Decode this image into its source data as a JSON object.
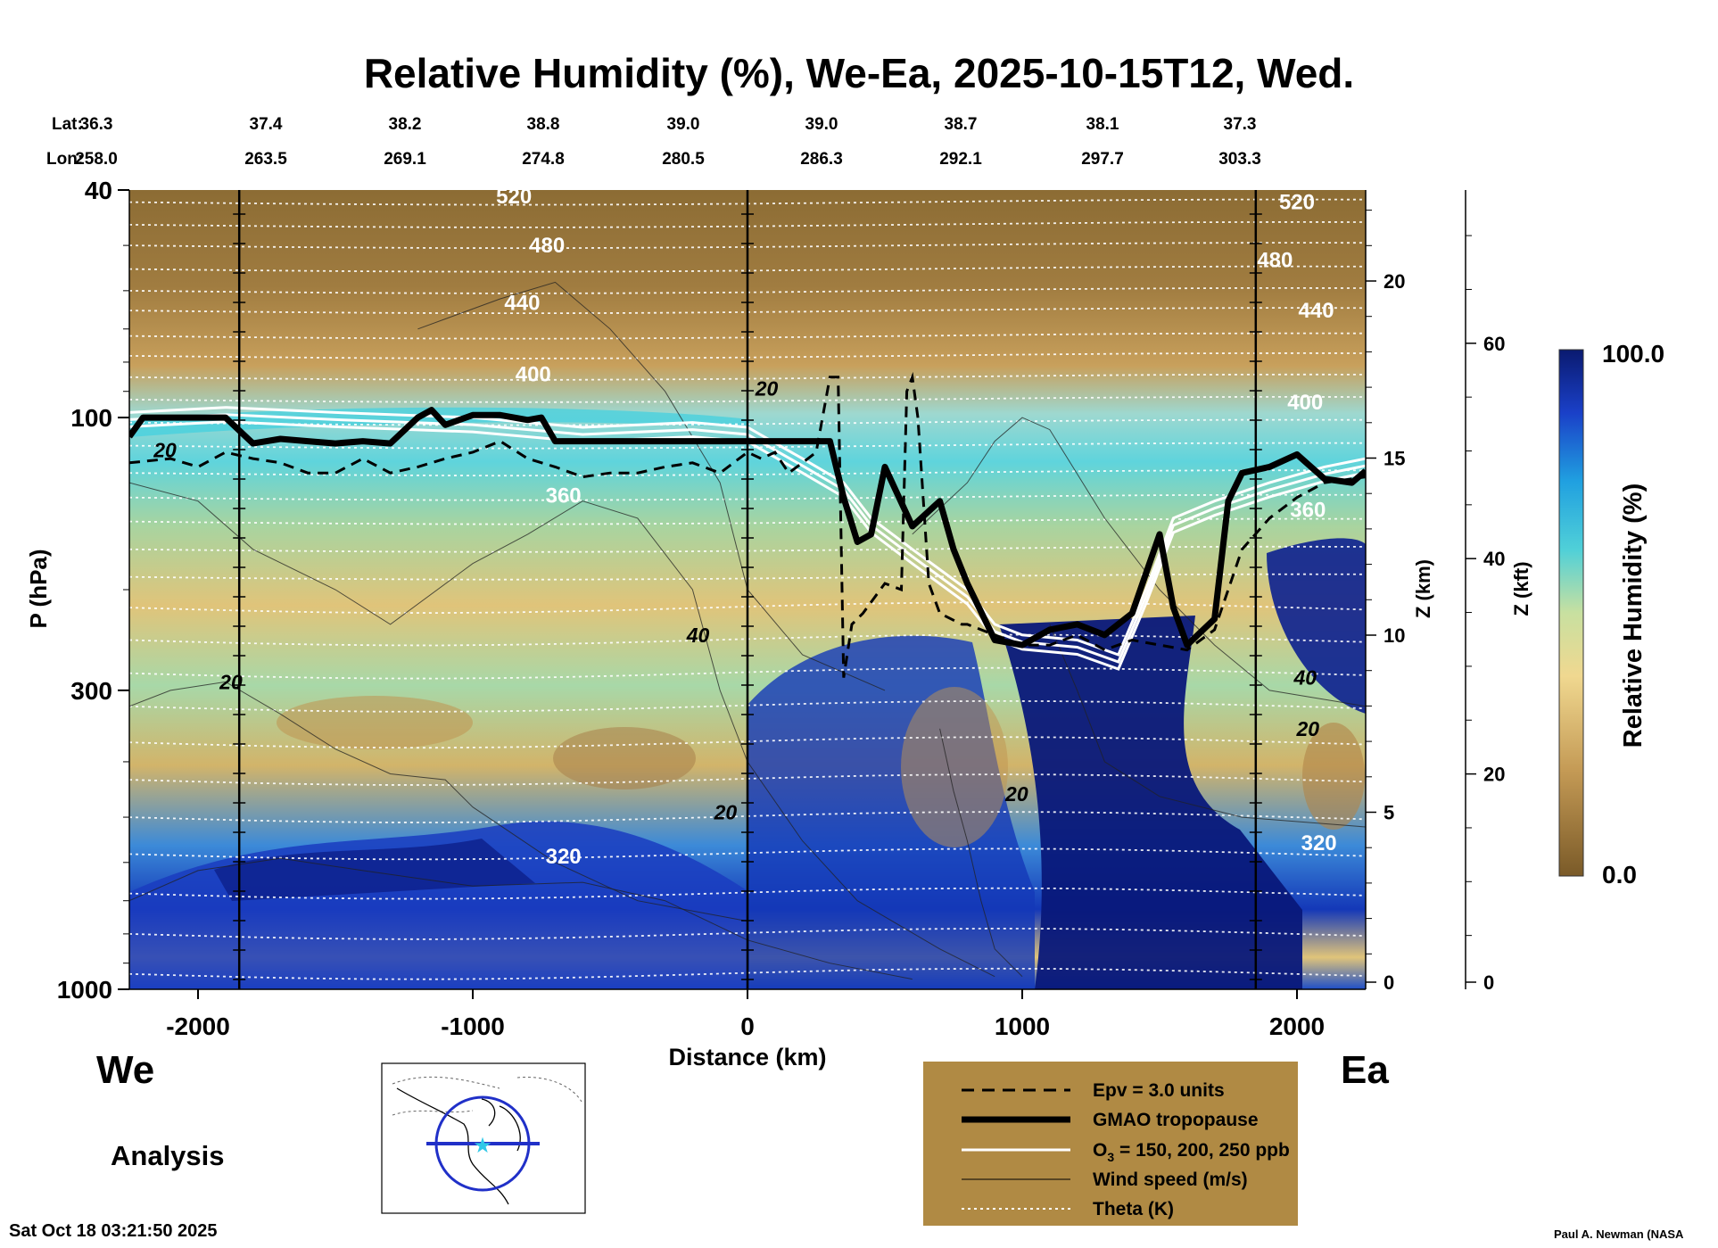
{
  "title": "Relative Humidity (%), We-Ea, 2025-10-15T12, Wed.",
  "coords": {
    "lat_label": "Lat:",
    "lon_label": "Lon:",
    "lat": [
      "36.3",
      "37.4",
      "38.2",
      "38.8",
      "39.0",
      "39.0",
      "38.7",
      "38.1",
      "37.3"
    ],
    "lon": [
      "258.0",
      "263.5",
      "269.1",
      "274.8",
      "280.5",
      "286.3",
      "292.1",
      "297.7",
      "303.3"
    ]
  },
  "axes": {
    "left_label": "P (hPa)",
    "bottom_label": "Distance (km)",
    "right_label_km": "Z (km)",
    "right_label_kft": "Z (kft)",
    "colorbar_label": "Relative Humidity (%)",
    "colorbar_max": "100.0",
    "colorbar_min": "0.0"
  },
  "side_labels": {
    "west": "We",
    "east": "Ea",
    "analysis": "Analysis"
  },
  "legend": {
    "epv": "Epv = 3.0 units",
    "tropopause": "GMAO tropopause",
    "ozone_prefix": "O",
    "ozone_sub": "3",
    "ozone_suffix": " = 150, 200, 250 ppb",
    "wind": "Wind speed (m/s)",
    "theta": "Theta (K)"
  },
  "footer": {
    "timestamp": "Sat Oct 18 03:21:50 2025",
    "credit": "Paul A. Newman (NASA"
  },
  "colors": {
    "dry": "#8a6a32",
    "tan": "#c8a05c",
    "pale": "#e8c87a",
    "green": "#b8d890",
    "cyan": "#40d0e0",
    "blue": "#1848d0",
    "navy": "#0a1a80",
    "legend_bg": "#b08a44"
  },
  "chart_data": {
    "type": "heatmap",
    "title": "Relative Humidity (%), We-Ea, 2025-10-15T12, Wed.",
    "xlabel": "Distance (km)",
    "ylabel": "P (hPa)",
    "xlim": [
      -2250,
      2250
    ],
    "ylim": [
      1000,
      40
    ],
    "x_ticks": [
      -2000,
      -1000,
      0,
      1000,
      2000
    ],
    "x_tick_labels": [
      "-2000",
      "-1000",
      "0",
      "1000",
      "2000"
    ],
    "p_ticks": [
      40,
      100,
      300,
      1000
    ],
    "p_tick_labels": [
      "40",
      "100",
      "300",
      "1000"
    ],
    "z_km_ticks": [
      0,
      5,
      10,
      15,
      20
    ],
    "z_km_tick_labels": [
      "0",
      "5",
      "10",
      "15",
      "20"
    ],
    "z_kft_ticks": [
      0,
      20,
      40,
      60
    ],
    "z_kft_tick_labels": [
      "0",
      "20",
      "40",
      "60"
    ],
    "colorbar_range": [
      0.0,
      100.0
    ],
    "theta_levels": [
      {
        "label": "520",
        "p": 41,
        "x": -850
      },
      {
        "label": "520",
        "p": 42,
        "x": 2000
      },
      {
        "label": "480",
        "p": 50,
        "x": -730
      },
      {
        "label": "480",
        "p": 53,
        "x": 1920
      },
      {
        "label": "440",
        "p": 63,
        "x": -820
      },
      {
        "label": "440",
        "p": 65,
        "x": 2070
      },
      {
        "label": "400",
        "p": 84,
        "x": -780
      },
      {
        "label": "400",
        "p": 94,
        "x": 2030
      },
      {
        "label": "360",
        "p": 137,
        "x": -670
      },
      {
        "label": "360",
        "p": 145,
        "x": 2040
      },
      {
        "label": "320",
        "p": 585,
        "x": -670
      },
      {
        "label": "320",
        "p": 555,
        "x": 2080
      }
    ],
    "wind_labels": [
      {
        "label": "20",
        "p": 114,
        "x": -2120
      },
      {
        "label": "20",
        "p": 89,
        "x": 70
      },
      {
        "label": "40",
        "p": 240,
        "x": -180
      },
      {
        "label": "20",
        "p": 290,
        "x": -1880
      },
      {
        "label": "20",
        "p": 490,
        "x": -80
      },
      {
        "label": "20",
        "p": 455,
        "x": 980
      },
      {
        "label": "40",
        "p": 285,
        "x": 2030
      },
      {
        "label": "20",
        "p": 350,
        "x": 2040
      }
    ],
    "tropopause_p": {
      "x": [
        -2250,
        -2200,
        -2100,
        -2000,
        -1900,
        -1800,
        -1700,
        -1600,
        -1500,
        -1400,
        -1300,
        -1200,
        -1150,
        -1100,
        -1000,
        -900,
        -800,
        -750,
        -700,
        -600,
        -500,
        -400,
        -300,
        -200,
        -100,
        0,
        100,
        200,
        300,
        350,
        400,
        450,
        500,
        600,
        700,
        750,
        800,
        900,
        1000,
        1100,
        1200,
        1300,
        1400,
        1500,
        1550,
        1600,
        1700,
        1750,
        1800,
        1900,
        2000,
        2100,
        2200,
        2250
      ],
      "p": [
        108,
        100,
        100,
        100,
        100,
        111,
        109,
        110,
        111,
        110,
        111,
        100,
        97,
        103,
        99,
        99,
        101,
        100,
        110,
        110,
        110,
        110,
        110,
        110,
        110,
        110,
        110,
        110,
        110,
        138,
        165,
        160,
        122,
        155,
        140,
        170,
        195,
        245,
        250,
        235,
        230,
        240,
        220,
        160,
        215,
        250,
        225,
        140,
        125,
        122,
        116,
        128,
        130,
        124
      ]
    },
    "epv_p": {
      "x": [
        -2250,
        -2100,
        -2000,
        -1900,
        -1800,
        -1700,
        -1600,
        -1500,
        -1400,
        -1300,
        -1200,
        -1100,
        -1000,
        -900,
        -800,
        -700,
        -600,
        -500,
        -400,
        -300,
        -200,
        -100,
        0,
        50,
        100,
        150,
        200,
        250,
        300,
        330,
        340,
        350,
        380,
        420,
        500,
        560,
        580,
        600,
        620,
        660,
        700,
        780,
        800,
        900,
        1000,
        1100,
        1200,
        1300,
        1400,
        1500,
        1600,
        1700,
        1800,
        1900,
        2000,
        2100,
        2200,
        2250
      ],
      "p": [
        120,
        118,
        122,
        115,
        118,
        120,
        125,
        125,
        118,
        125,
        122,
        118,
        115,
        110,
        118,
        122,
        127,
        125,
        125,
        122,
        120,
        125,
        115,
        118,
        115,
        125,
        120,
        115,
        85,
        85,
        155,
        285,
        230,
        220,
        195,
        200,
        90,
        85,
        100,
        195,
        220,
        230,
        230,
        240,
        250,
        250,
        240,
        255,
        245,
        250,
        255,
        235,
        170,
        150,
        138,
        130,
        128,
        127
      ]
    }
  }
}
